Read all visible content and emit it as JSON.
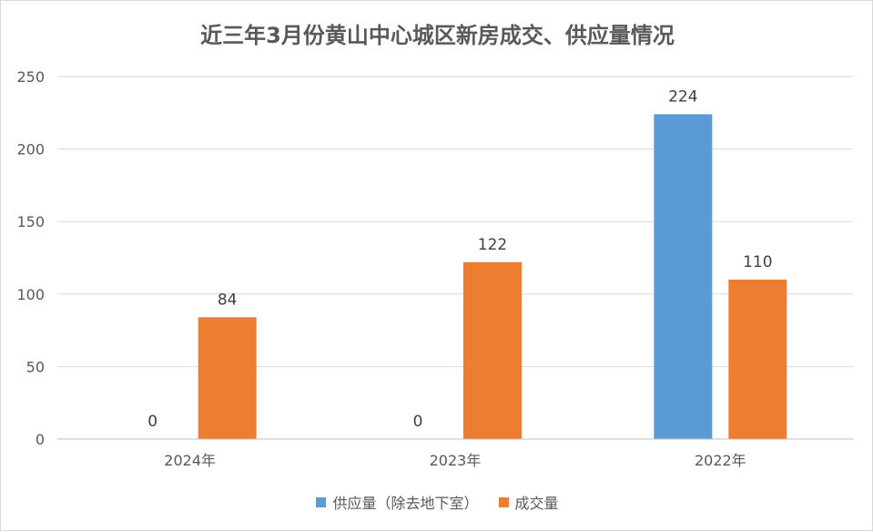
{
  "chart_data": {
    "type": "bar",
    "title": "近三年3月份黄山中心城区新房成交、供应量情况",
    "categories": [
      "2024年",
      "2023年",
      "2022年"
    ],
    "series": [
      {
        "name": "供应量（除去地下室）",
        "values": [
          0,
          0,
          224
        ],
        "color": "#5b9bd5"
      },
      {
        "name": "成交量",
        "values": [
          84,
          122,
          110
        ],
        "color": "#ed7d31"
      }
    ],
    "ylim": [
      0,
      250
    ],
    "yticks": [
      0,
      50,
      100,
      150,
      200,
      250
    ],
    "grid": true,
    "legend_position": "bottom",
    "xlabel": "",
    "ylabel": ""
  }
}
